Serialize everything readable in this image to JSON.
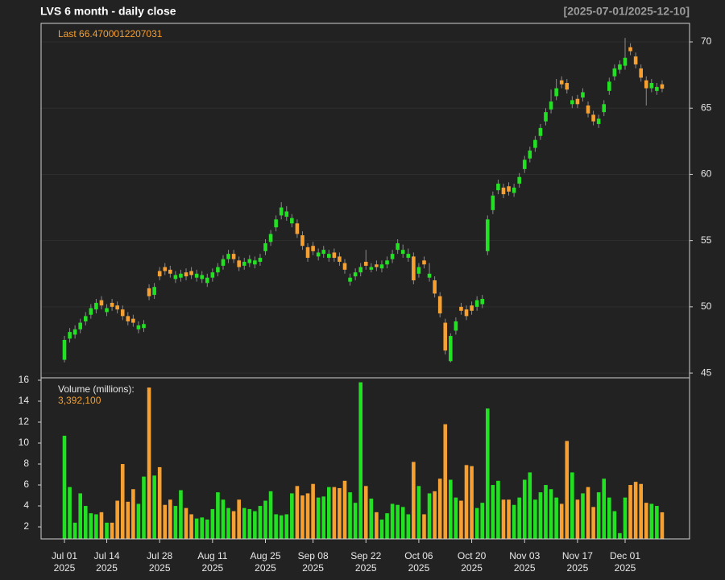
{
  "chart_data": {
    "type": "candlestick",
    "title": "LVS  6 month - daily close",
    "subtitle": "[2025-07-01/2025-12-10]",
    "last_label": "Last 66.4700012207031",
    "up_color": "#22e022",
    "down_color": "#f5a030",
    "wick_color": "#8a8a8a",
    "grid": true,
    "categories": [
      "2025-07-01",
      "2025-07-02",
      "2025-07-03",
      "2025-07-07",
      "2025-07-08",
      "2025-07-09",
      "2025-07-10",
      "2025-07-11",
      "2025-07-14",
      "2025-07-15",
      "2025-07-16",
      "2025-07-17",
      "2025-07-18",
      "2025-07-21",
      "2025-07-22",
      "2025-07-23",
      "2025-07-24",
      "2025-07-25",
      "2025-07-28",
      "2025-07-29",
      "2025-07-30",
      "2025-07-31",
      "2025-08-01",
      "2025-08-04",
      "2025-08-05",
      "2025-08-06",
      "2025-08-07",
      "2025-08-08",
      "2025-08-11",
      "2025-08-12",
      "2025-08-13",
      "2025-08-14",
      "2025-08-15",
      "2025-08-18",
      "2025-08-19",
      "2025-08-20",
      "2025-08-21",
      "2025-08-22",
      "2025-08-25",
      "2025-08-26",
      "2025-08-27",
      "2025-08-28",
      "2025-08-29",
      "2025-09-02",
      "2025-09-03",
      "2025-09-04",
      "2025-09-05",
      "2025-09-08",
      "2025-09-09",
      "2025-09-10",
      "2025-09-11",
      "2025-09-12",
      "2025-09-15",
      "2025-09-16",
      "2025-09-17",
      "2025-09-18",
      "2025-09-19",
      "2025-09-22",
      "2025-09-23",
      "2025-09-24",
      "2025-09-25",
      "2025-09-26",
      "2025-09-29",
      "2025-09-30",
      "2025-10-01",
      "2025-10-02",
      "2025-10-03",
      "2025-10-06",
      "2025-10-07",
      "2025-10-08",
      "2025-10-09",
      "2025-10-10",
      "2025-10-13",
      "2025-10-14",
      "2025-10-15",
      "2025-10-16",
      "2025-10-17",
      "2025-10-20",
      "2025-10-21",
      "2025-10-22",
      "2025-10-23",
      "2025-10-24",
      "2025-10-27",
      "2025-10-28",
      "2025-10-29",
      "2025-10-30",
      "2025-10-31",
      "2025-11-03",
      "2025-11-04",
      "2025-11-05",
      "2025-11-06",
      "2025-11-07",
      "2025-11-10",
      "2025-11-11",
      "2025-11-12",
      "2025-11-13",
      "2025-11-14",
      "2025-11-17",
      "2025-11-18",
      "2025-11-19",
      "2025-11-20",
      "2025-11-21",
      "2025-11-24",
      "2025-11-25",
      "2025-11-26",
      "2025-11-28",
      "2025-12-01",
      "2025-12-02",
      "2025-12-03",
      "2025-12-04",
      "2025-12-05",
      "2025-12-08",
      "2025-12-09",
      "2025-12-10"
    ],
    "open": [
      46.0,
      47.6,
      47.9,
      48.3,
      48.9,
      49.4,
      49.8,
      50.5,
      49.6,
      50.3,
      50.1,
      49.8,
      49.3,
      49.1,
      48.3,
      48.4,
      51.4,
      50.9,
      52.7,
      53.0,
      52.8,
      52.1,
      52.2,
      52.6,
      52.7,
      52.2,
      52.1,
      51.8,
      52.2,
      52.6,
      53.1,
      53.6,
      54.0,
      53.5,
      53.1,
      53.3,
      53.2,
      53.4,
      54.2,
      54.9,
      56.0,
      56.9,
      56.8,
      56.3,
      56.3,
      55.4,
      54.5,
      54.6,
      53.8,
      54.0,
      53.7,
      54.1,
      53.8,
      53.3,
      51.9,
      52.3,
      52.6,
      53.4,
      52.8,
      53.2,
      52.9,
      53.2,
      53.6,
      54.3,
      54.0,
      53.7,
      53.8,
      52.5,
      53.5,
      52.2,
      52.0,
      50.8,
      48.8,
      45.9,
      48.2,
      50.0,
      49.8,
      50.1,
      50.0,
      50.2,
      54.2,
      57.3,
      58.8,
      59.0,
      59.1,
      58.6,
      59.3,
      60.4,
      61.2,
      62.0,
      62.9,
      64.0,
      64.9,
      65.9,
      67.1,
      66.9,
      65.3,
      65.7,
      65.8,
      65.2,
      64.5,
      63.8,
      64.7,
      66.3,
      67.4,
      67.9,
      68.2,
      69.6,
      68.9,
      68.0,
      67.1,
      66.5,
      66.3,
      66.8
    ],
    "high": [
      47.8,
      48.4,
      48.6,
      49.1,
      49.6,
      50.2,
      50.6,
      50.8,
      50.2,
      50.6,
      50.4,
      50.1,
      49.6,
      49.4,
      48.9,
      49.0,
      51.7,
      51.8,
      53.0,
      53.3,
      53.1,
      52.7,
      52.8,
      52.9,
      53.0,
      52.8,
      52.7,
      52.5,
      52.9,
      53.3,
      53.9,
      54.3,
      54.3,
      53.8,
      53.7,
      53.9,
      53.8,
      54.0,
      55.1,
      55.8,
      56.9,
      57.9,
      57.6,
      57.0,
      56.6,
      55.7,
      54.8,
      54.9,
      54.4,
      54.6,
      54.3,
      54.4,
      54.1,
      53.6,
      52.5,
      52.9,
      53.3,
      54.3,
      53.3,
      53.5,
      53.5,
      53.8,
      54.3,
      55.1,
      54.7,
      54.4,
      54.1,
      53.3,
      53.8,
      53.3,
      52.3,
      51.1,
      49.1,
      48.0,
      49.2,
      50.3,
      50.1,
      50.4,
      50.8,
      50.9,
      56.9,
      58.7,
      59.6,
      59.3,
      59.4,
      59.3,
      60.1,
      61.4,
      62.1,
      62.9,
      63.8,
      65.0,
      66.4,
      67.2,
      67.4,
      67.2,
      65.9,
      66.0,
      66.5,
      65.5,
      64.8,
      64.5,
      65.6,
      67.3,
      68.3,
      68.6,
      70.3,
      69.9,
      69.2,
      68.3,
      67.4,
      67.2,
      66.9,
      67.1
    ],
    "low": [
      45.8,
      47.3,
      47.6,
      48.0,
      48.6,
      49.1,
      49.5,
      49.8,
      49.3,
      49.7,
      49.5,
      49.0,
      48.6,
      48.5,
      48.0,
      48.1,
      50.5,
      50.6,
      52.0,
      52.4,
      52.2,
      51.8,
      51.9,
      52.0,
      52.1,
      51.9,
      51.8,
      51.5,
      51.9,
      52.3,
      52.8,
      53.3,
      53.3,
      52.7,
      52.8,
      53.0,
      52.9,
      53.1,
      53.9,
      54.6,
      55.7,
      56.6,
      56.5,
      56.0,
      55.2,
      54.3,
      53.4,
      53.9,
      53.5,
      53.7,
      53.4,
      53.4,
      53.1,
      52.5,
      51.6,
      52.0,
      52.3,
      52.8,
      52.6,
      52.7,
      52.6,
      52.9,
      53.3,
      54.0,
      53.7,
      53.4,
      51.7,
      52.2,
      52.9,
      51.9,
      50.7,
      49.2,
      46.4,
      45.8,
      47.9,
      49.4,
      49.0,
      49.4,
      49.7,
      49.9,
      53.9,
      57.0,
      58.5,
      58.2,
      58.4,
      58.3,
      59.0,
      60.1,
      60.9,
      61.7,
      62.6,
      63.7,
      64.6,
      65.6,
      66.5,
      66.1,
      65.0,
      65.0,
      65.5,
      64.3,
      63.7,
      63.5,
      64.4,
      66.0,
      67.1,
      67.6,
      67.9,
      69.0,
      68.0,
      67.0,
      65.2,
      66.2,
      66.0,
      66.2
    ],
    "close": [
      47.5,
      48.1,
      48.3,
      48.8,
      49.3,
      49.9,
      50.3,
      50.1,
      49.9,
      50.0,
      49.8,
      49.3,
      48.9,
      48.8,
      48.6,
      48.7,
      50.8,
      51.5,
      52.3,
      52.7,
      52.5,
      52.4,
      52.5,
      52.3,
      52.4,
      52.5,
      52.4,
      52.2,
      52.6,
      53.0,
      53.6,
      54.0,
      53.6,
      53.0,
      53.4,
      53.6,
      53.5,
      53.7,
      54.8,
      55.5,
      56.6,
      57.5,
      57.2,
      56.7,
      55.5,
      54.6,
      53.7,
      54.2,
      54.1,
      54.3,
      54.0,
      53.7,
      53.4,
      52.8,
      52.2,
      52.6,
      53.0,
      53.1,
      53.0,
      53.0,
      53.2,
      53.5,
      54.0,
      54.8,
      54.3,
      54.0,
      52.0,
      53.0,
      53.2,
      52.5,
      51.0,
      49.5,
      46.7,
      47.8,
      48.9,
      49.7,
      49.3,
      49.7,
      50.5,
      50.6,
      56.6,
      58.4,
      59.3,
      58.5,
      58.7,
      59.0,
      59.8,
      61.1,
      61.8,
      62.6,
      63.5,
      64.7,
      65.5,
      66.5,
      66.8,
      66.4,
      65.6,
      65.3,
      66.2,
      64.6,
      64.0,
      64.2,
      65.3,
      67.0,
      68.0,
      68.3,
      68.8,
      69.3,
      68.3,
      67.3,
      66.5,
      66.9,
      66.6,
      66.4700012207031
    ],
    "ylim": [
      44.64,
      71.4
    ],
    "yticks": [
      45,
      50,
      55,
      60,
      65,
      70
    ],
    "xticks": [
      {
        "value": "2025-07-01",
        "label": [
          "Jul 01",
          "2025"
        ]
      },
      {
        "value": "2025-07-14",
        "label": [
          "Jul 14",
          "2025"
        ]
      },
      {
        "value": "2025-07-28",
        "label": [
          "Jul 28",
          "2025"
        ]
      },
      {
        "value": "2025-08-11",
        "label": [
          "Aug 11",
          "2025"
        ]
      },
      {
        "value": "2025-08-25",
        "label": [
          "Aug 25",
          "2025"
        ]
      },
      {
        "value": "2025-09-08",
        "label": [
          "Sep 08",
          "2025"
        ]
      },
      {
        "value": "2025-09-22",
        "label": [
          "Sep 22",
          "2025"
        ]
      },
      {
        "value": "2025-10-06",
        "label": [
          "Oct 06",
          "2025"
        ]
      },
      {
        "value": "2025-10-20",
        "label": [
          "Oct 20",
          "2025"
        ]
      },
      {
        "value": "2025-11-03",
        "label": [
          "Nov 03",
          "2025"
        ]
      },
      {
        "value": "2025-11-17",
        "label": [
          "Nov 17",
          "2025"
        ]
      },
      {
        "value": "2025-12-01",
        "label": [
          "Dec 01",
          "2025"
        ]
      }
    ],
    "volume": {
      "title": "Volume (millions):",
      "last_label": "3,392,100",
      "values": [
        10.7,
        5.8,
        2.4,
        5.2,
        4.0,
        3.3,
        3.2,
        3.4,
        2.4,
        2.4,
        4.5,
        8.0,
        4.4,
        5.6,
        4.2,
        6.8,
        15.3,
        6.9,
        7.7,
        4.1,
        4.6,
        4.0,
        5.5,
        3.8,
        3.2,
        2.8,
        2.9,
        2.7,
        3.7,
        5.3,
        4.6,
        3.8,
        3.5,
        4.6,
        3.8,
        3.7,
        3.5,
        4.0,
        4.5,
        5.4,
        3.2,
        3.1,
        3.2,
        5.2,
        5.9,
        5.0,
        5.2,
        6.1,
        4.8,
        4.9,
        5.8,
        5.8,
        5.7,
        6.4,
        5.3,
        4.3,
        15.8,
        5.9,
        4.7,
        3.4,
        2.7,
        3.3,
        4.2,
        4.1,
        3.9,
        3.2,
        8.2,
        5.9,
        3.2,
        5.2,
        5.4,
        6.6,
        11.8,
        6.5,
        4.8,
        4.5,
        7.9,
        7.8,
        3.8,
        4.3,
        13.3,
        6.0,
        6.4,
        4.6,
        4.6,
        4.1,
        4.8,
        6.5,
        7.2,
        4.6,
        5.3,
        6.0,
        5.6,
        4.8,
        4.2,
        10.2,
        7.2,
        4.6,
        5.2,
        5.8,
        3.9,
        5.3,
        6.6,
        4.8,
        3.5,
        1.4,
        4.8,
        6.0,
        6.3,
        6.1,
        4.3,
        4.2,
        4.0,
        3.3921
      ],
      "ylim": [
        0.85,
        16.23
      ],
      "yticks": [
        2,
        4,
        6,
        8,
        10,
        12,
        14,
        16
      ]
    }
  }
}
